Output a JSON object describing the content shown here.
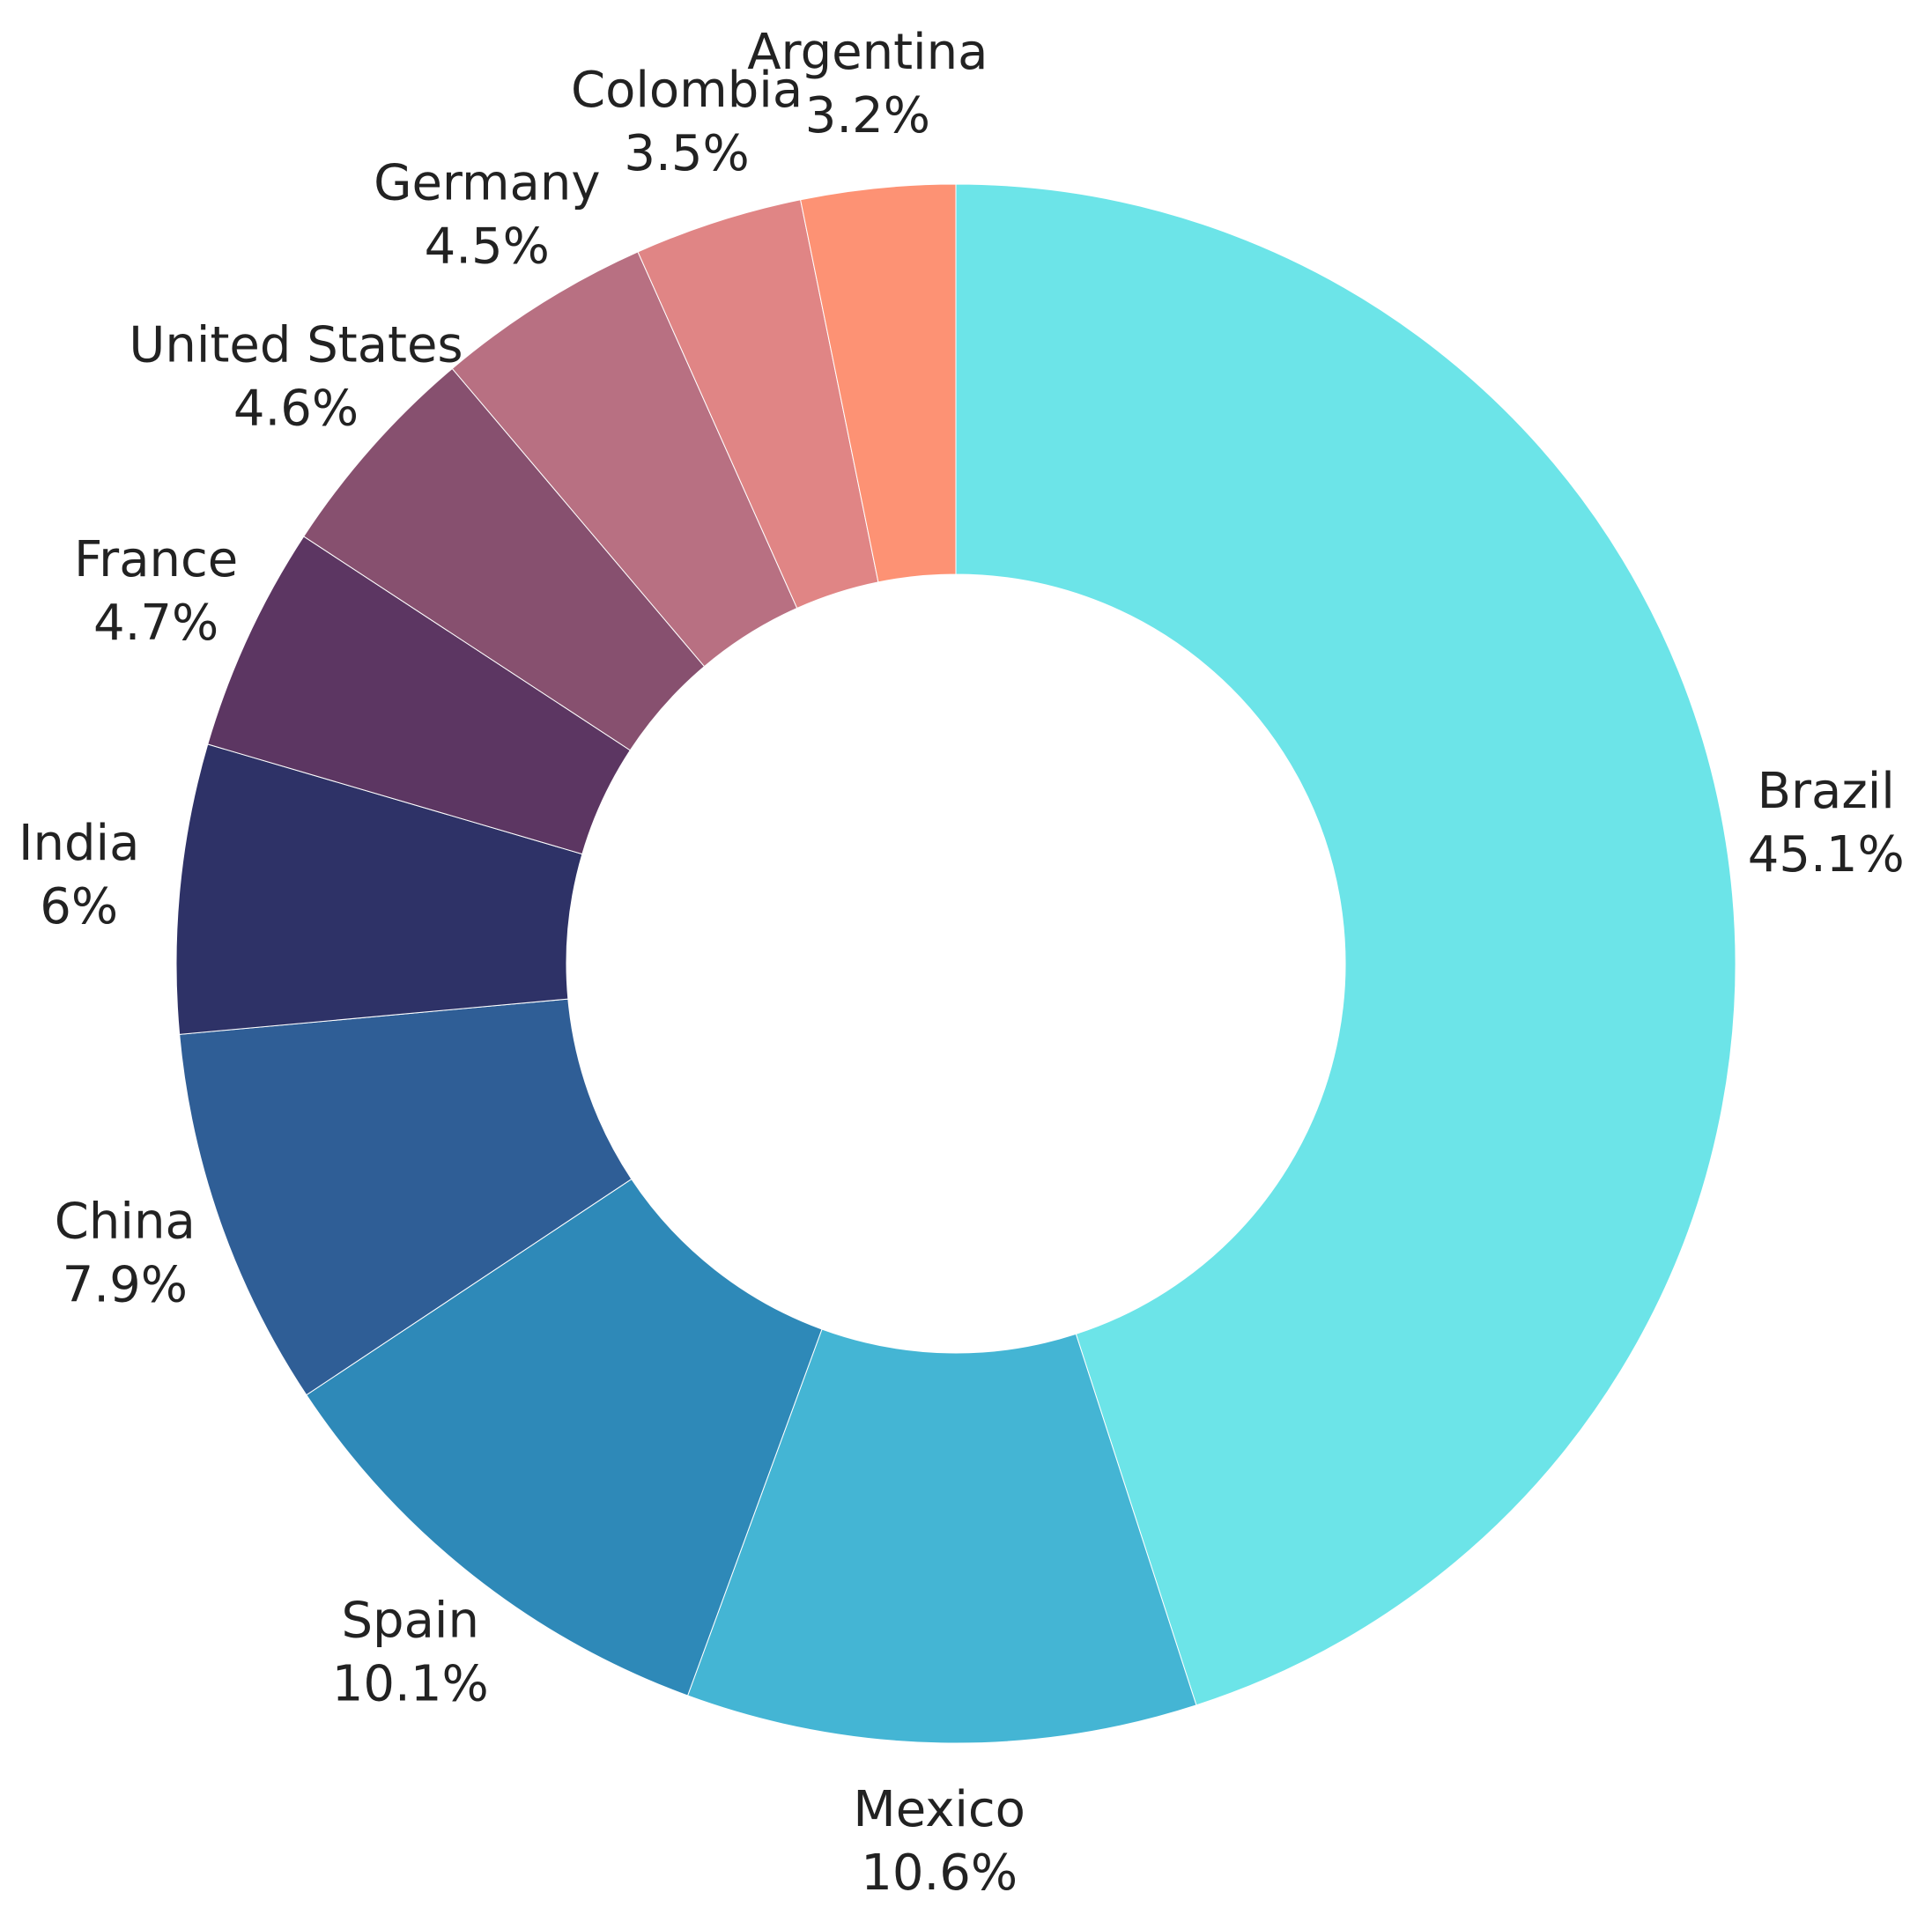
{
  "chart_data": {
    "type": "donut",
    "categories": [
      "Brazil",
      "Mexico",
      "Spain",
      "China",
      "India",
      "France",
      "United States",
      "Germany",
      "Colombia",
      "Argentina"
    ],
    "values": [
      45.1,
      10.6,
      10.1,
      7.9,
      6,
      4.7,
      4.6,
      4.5,
      3.5,
      3.2
    ],
    "value_labels": [
      "45.1%",
      "10.6%",
      "10.1%",
      "7.9%",
      "6%",
      "4.7%",
      "4.6%",
      "4.5%",
      "3.5%",
      "3.2%"
    ],
    "colors": [
      "#6ce4e8",
      "#44b5d4",
      "#2e89b8",
      "#2f5e96",
      "#2e3267",
      "#5c3662",
      "#87506f",
      "#b87082",
      "#e08585",
      "#fd9274"
    ]
  }
}
